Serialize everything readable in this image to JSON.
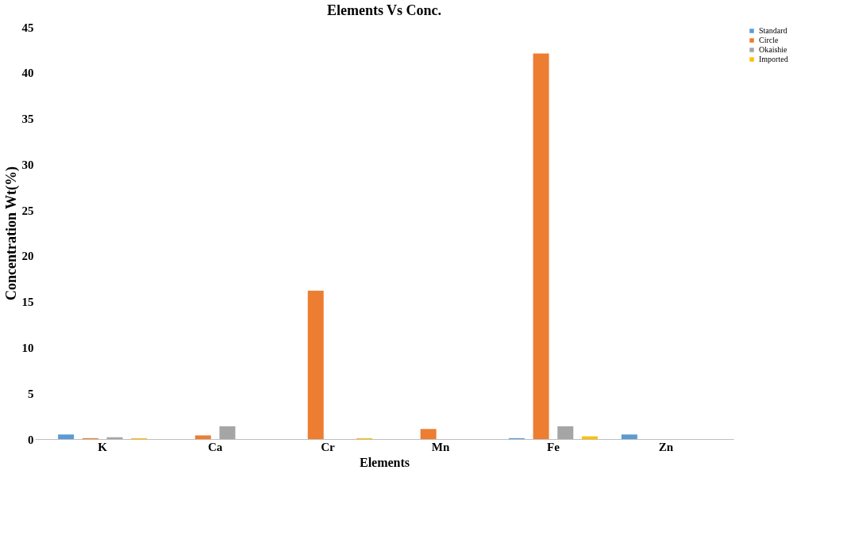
{
  "chart_data": {
    "type": "bar",
    "title": "Elements Vs Conc.",
    "xlabel": "Elements",
    "ylabel": "Concentration Wt(%)",
    "categories": [
      "K",
      "Ca",
      "Cr",
      "Mn",
      "Fe",
      "Zn"
    ],
    "series": [
      {
        "name": "Standard",
        "color": "#5b9bd5",
        "values": [
          0.5,
          null,
          null,
          null,
          0.1,
          0.5
        ]
      },
      {
        "name": "Circle",
        "color": "#ed7d31",
        "values": [
          0.1,
          0.4,
          16.2,
          1.1,
          42.1,
          null
        ]
      },
      {
        "name": "Okaishie",
        "color": "#a5a5a5",
        "values": [
          0.2,
          1.4,
          null,
          null,
          1.4,
          null
        ]
      },
      {
        "name": "Imported",
        "color": "#ffc000",
        "values": [
          0.1,
          null,
          0.1,
          null,
          0.3,
          null
        ]
      }
    ],
    "ylim": [
      0,
      45
    ],
    "yticks": [
      0,
      5,
      10,
      15,
      20,
      25,
      30,
      35,
      40,
      45
    ],
    "grid": false,
    "legend": "right"
  }
}
